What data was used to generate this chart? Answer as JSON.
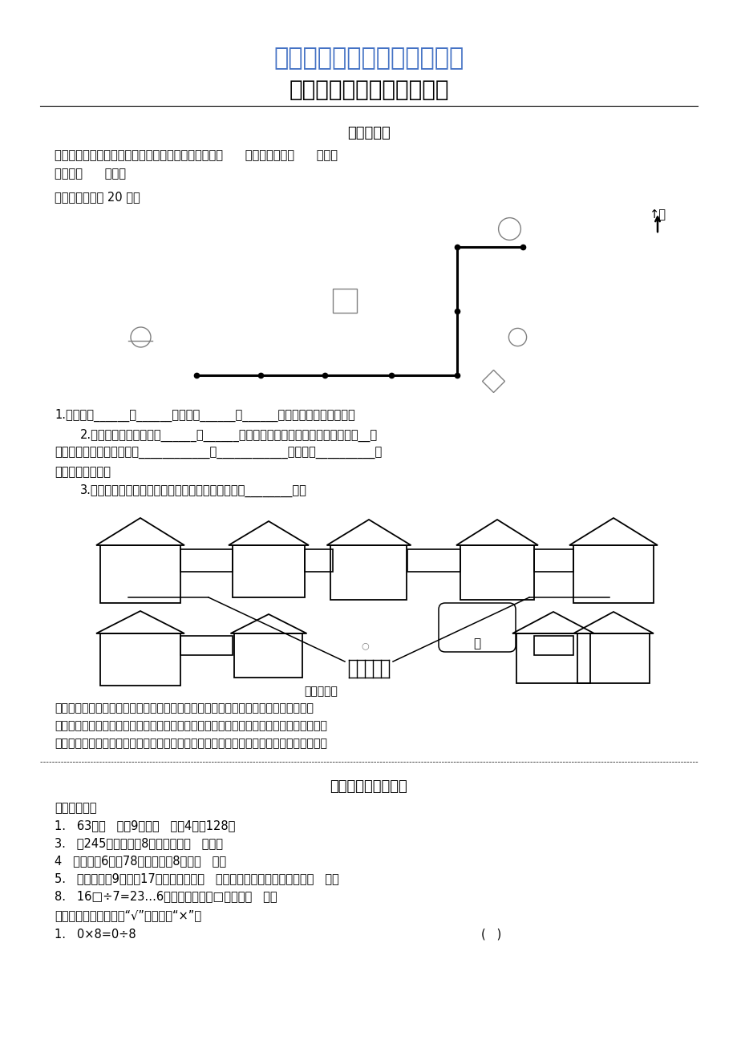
{
  "title1": "最新人教版数学精品教学资料",
  "title2": "三年级数学下册巩固与提高",
  "title1_color": "#4472C4",
  "title2_color": "#000000",
  "section1": "位置与方向",
  "text1": "早晨同学们面向太阳举行升旗仳式，此时同学们面向（      ）面，背对着（      ）面，",
  "text2": "左侧是（      ）面。",
  "text3": "送信。（每小格 20 米）",
  "q1": "1.鴿子要向______飞______米，再向______飞______米就把信送给了小松鼠。",
  "q2": "2.鴿子从松鼠家出来，向______飞______米就到了兔子家，把信送给兔子后再向__飞",
  "q2b": "米找到大象，最后再接着向____________飞____________米，又向__________飞",
  "q2c": "米把信交给小猫。",
  "q3": "3.从鴿子开始出发，到把信全部送完，在路上共飞了________米。",
  "zoo_text": "星期天，我们去动物园游玩，走进动物园大门，正北面有狮子馆和河马馆，熊猫馆在狮",
  "zoo_text2": "子馆的西北面，飞禽馆在狮子馆的东北面，经过熊猫馆向南走，可到达猴山和大象馆，经过",
  "zoo_text3": "猴山向东走到达狮子馆和金鱼馆，经过金鱼馆向南走到达骆驼馆，你能填出它们的位置吗？",
  "section2": "除数是一位数的除法",
  "fill_intro": "请你填一填。",
  "fill1": "1.   63是（   ）的9倍，（   ）的4倍是128。",
  "fill3": "3.   从245里连续减去8，最多能减（   ）次。",
  "fill4": "4   一个数的6倍是78，这个数的8倍是（   ）。",
  "fill5": "5.   一个数除以9，商是17，余数最大是（   ），当余数最大时，被除数是（   ）。",
  "fill8": "8.   16□÷7=23…6，这道算式中，□里应填（   ）。",
  "judge_intro": "对错我判断。（对的打“√”，错的打“×”）",
  "judge1": "1.   0×8=0÷8",
  "judge1_bracket": "(   )",
  "bg_color": "#ffffff"
}
